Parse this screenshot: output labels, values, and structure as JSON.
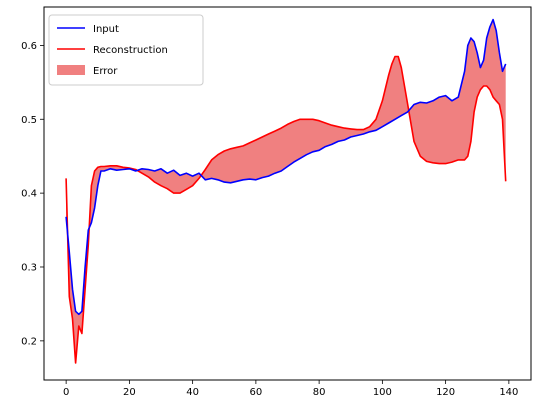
{
  "chart_data": {
    "type": "line",
    "title": "",
    "xlabel": "",
    "ylabel": "",
    "xlim": [
      -7,
      147
    ],
    "ylim": [
      0.147,
      0.652
    ],
    "grid": false,
    "legend_position": "top-left",
    "x_ticks": [
      0,
      20,
      40,
      60,
      80,
      100,
      120,
      140
    ],
    "y_ticks": [
      0.2,
      0.3,
      0.4,
      0.5,
      0.6
    ],
    "x_tick_labels": [
      "0",
      "20",
      "40",
      "60",
      "80",
      "100",
      "120",
      "140"
    ],
    "y_tick_labels": [
      "0.2",
      "0.3",
      "0.4",
      "0.5",
      "0.6"
    ],
    "legend": [
      "Input",
      "Reconstruction",
      "Error"
    ],
    "colors": {
      "input": "#0000ff",
      "reconstruction": "#ff0000",
      "error": "#f08080"
    },
    "series": [
      {
        "name": "Input",
        "x": [
          0,
          1,
          2,
          3,
          4,
          5,
          6,
          7,
          8,
          9,
          10,
          11,
          12,
          14,
          16,
          18,
          20,
          22,
          24,
          26,
          28,
          30,
          32,
          34,
          36,
          38,
          40,
          42,
          44,
          46,
          48,
          50,
          52,
          54,
          56,
          58,
          60,
          62,
          64,
          66,
          68,
          70,
          72,
          74,
          76,
          78,
          80,
          82,
          84,
          86,
          88,
          90,
          92,
          94,
          96,
          98,
          100,
          102,
          104,
          106,
          108,
          110,
          112,
          114,
          116,
          118,
          120,
          122,
          124,
          126,
          127,
          128,
          129,
          130,
          131,
          132,
          133,
          134,
          135,
          136,
          137,
          138,
          139
        ],
        "y": [
          0.368,
          0.32,
          0.27,
          0.24,
          0.236,
          0.24,
          0.3,
          0.35,
          0.36,
          0.38,
          0.41,
          0.43,
          0.43,
          0.433,
          0.431,
          0.432,
          0.433,
          0.43,
          0.433,
          0.432,
          0.43,
          0.433,
          0.427,
          0.431,
          0.424,
          0.427,
          0.423,
          0.427,
          0.418,
          0.42,
          0.418,
          0.415,
          0.414,
          0.416,
          0.418,
          0.419,
          0.418,
          0.421,
          0.423,
          0.427,
          0.43,
          0.436,
          0.442,
          0.447,
          0.452,
          0.456,
          0.458,
          0.463,
          0.466,
          0.47,
          0.472,
          0.476,
          0.478,
          0.48,
          0.483,
          0.485,
          0.49,
          0.495,
          0.5,
          0.505,
          0.51,
          0.52,
          0.523,
          0.522,
          0.525,
          0.53,
          0.532,
          0.525,
          0.53,
          0.565,
          0.6,
          0.61,
          0.605,
          0.59,
          0.57,
          0.58,
          0.61,
          0.625,
          0.635,
          0.62,
          0.59,
          0.565,
          0.575
        ]
      },
      {
        "name": "Reconstruction",
        "x": [
          0,
          1,
          2,
          3,
          4,
          5,
          6,
          7,
          8,
          9,
          10,
          11,
          12,
          14,
          16,
          18,
          20,
          22,
          24,
          26,
          28,
          30,
          32,
          34,
          36,
          38,
          40,
          42,
          44,
          46,
          48,
          50,
          52,
          54,
          56,
          58,
          60,
          62,
          64,
          66,
          68,
          70,
          72,
          74,
          76,
          78,
          80,
          82,
          84,
          86,
          88,
          90,
          92,
          94,
          96,
          98,
          100,
          102,
          103,
          104,
          105,
          106,
          108,
          110,
          112,
          114,
          116,
          118,
          120,
          122,
          124,
          126,
          127,
          128,
          129,
          130,
          131,
          132,
          133,
          134,
          135,
          136,
          137,
          138,
          139
        ],
        "y": [
          0.42,
          0.26,
          0.23,
          0.17,
          0.22,
          0.21,
          0.27,
          0.33,
          0.41,
          0.43,
          0.435,
          0.436,
          0.436,
          0.437,
          0.437,
          0.435,
          0.434,
          0.432,
          0.427,
          0.422,
          0.415,
          0.41,
          0.406,
          0.4,
          0.4,
          0.405,
          0.41,
          0.42,
          0.432,
          0.445,
          0.452,
          0.457,
          0.46,
          0.462,
          0.464,
          0.468,
          0.472,
          0.476,
          0.48,
          0.484,
          0.488,
          0.493,
          0.497,
          0.5,
          0.5,
          0.5,
          0.498,
          0.495,
          0.492,
          0.49,
          0.488,
          0.487,
          0.486,
          0.486,
          0.49,
          0.5,
          0.525,
          0.56,
          0.575,
          0.585,
          0.585,
          0.57,
          0.52,
          0.47,
          0.45,
          0.443,
          0.441,
          0.44,
          0.44,
          0.442,
          0.445,
          0.445,
          0.45,
          0.47,
          0.51,
          0.53,
          0.54,
          0.545,
          0.545,
          0.54,
          0.53,
          0.525,
          0.52,
          0.5,
          0.416
        ]
      }
    ]
  }
}
